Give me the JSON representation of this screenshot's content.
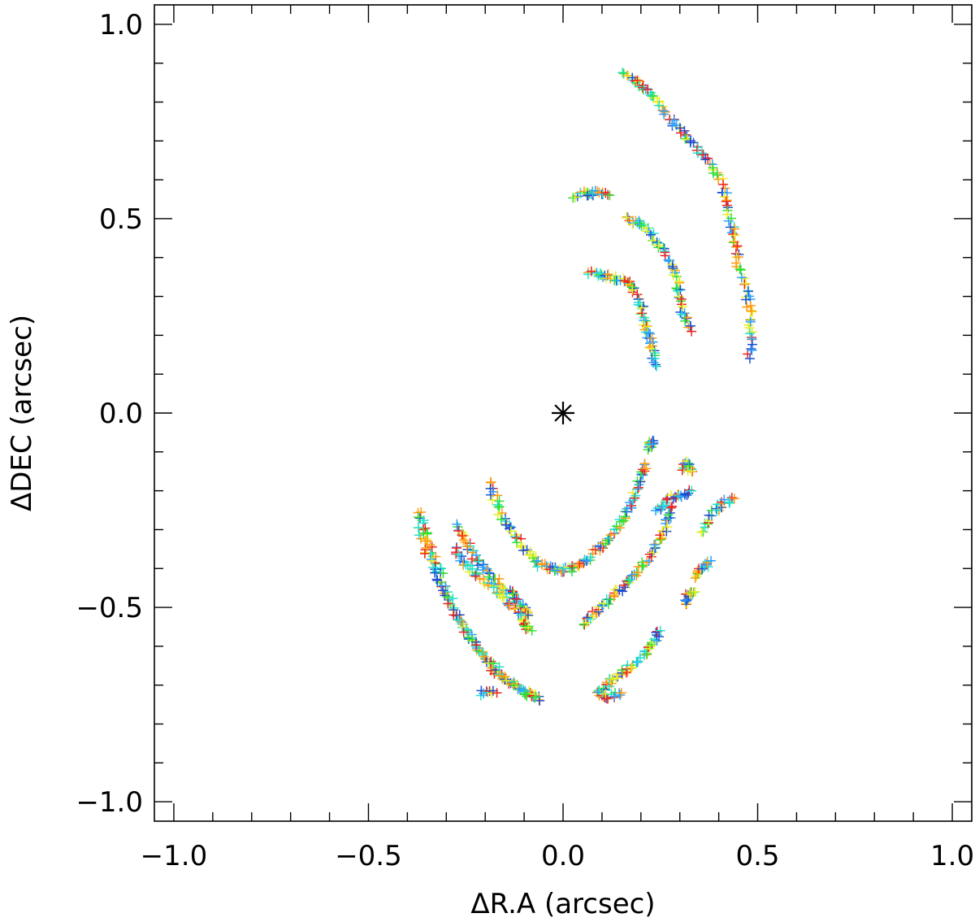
{
  "chart_data": {
    "type": "scatter",
    "title": "",
    "xlabel": "ΔR.A (arcsec)",
    "ylabel": "ΔDEC (arcsec)",
    "xlim": [
      -1.05,
      1.05
    ],
    "ylim": [
      -1.05,
      1.05
    ],
    "xticks": [
      "−1.0",
      "−0.5",
      "0.0",
      "0.5",
      "1.0"
    ],
    "yticks": [
      "−1.0",
      "−0.5",
      "0.0",
      "0.5",
      "1.0"
    ],
    "xtick_values": [
      -1.0,
      -0.5,
      0.0,
      0.5,
      1.0
    ],
    "ytick_values": [
      -1.0,
      -0.5,
      0.0,
      0.5,
      1.0
    ],
    "grid": false,
    "center_marker": {
      "x": 0.0,
      "y": 0.0,
      "symbol": "asterisk"
    },
    "marker": "plus",
    "palette": [
      "#1f4fd0",
      "#2aa0ff",
      "#20e0d0",
      "#30e030",
      "#e8ee20",
      "#ff9a10",
      "#f02020"
    ],
    "arcs": [
      {
        "points": [
          [
            0.16,
            0.87
          ],
          [
            0.19,
            0.85
          ],
          [
            0.22,
            0.83
          ],
          [
            0.25,
            0.79
          ],
          [
            0.28,
            0.75
          ],
          [
            0.31,
            0.72
          ],
          [
            0.34,
            0.68
          ],
          [
            0.37,
            0.65
          ],
          [
            0.4,
            0.61
          ],
          [
            0.42,
            0.56
          ],
          [
            0.43,
            0.5
          ],
          [
            0.44,
            0.44
          ],
          [
            0.45,
            0.38
          ],
          [
            0.47,
            0.32
          ],
          [
            0.48,
            0.26
          ],
          [
            0.48,
            0.2
          ],
          [
            0.48,
            0.14
          ]
        ]
      },
      {
        "points": [
          [
            0.03,
            0.56
          ],
          [
            0.06,
            0.565
          ],
          [
            0.09,
            0.565
          ],
          [
            0.12,
            0.56
          ]
        ]
      },
      {
        "points": [
          [
            0.16,
            0.5
          ],
          [
            0.19,
            0.49
          ],
          [
            0.22,
            0.47
          ],
          [
            0.25,
            0.43
          ],
          [
            0.27,
            0.39
          ],
          [
            0.29,
            0.35
          ],
          [
            0.3,
            0.3
          ],
          [
            0.31,
            0.25
          ],
          [
            0.33,
            0.21
          ]
        ]
      },
      {
        "points": [
          [
            0.07,
            0.36
          ],
          [
            0.1,
            0.355
          ],
          [
            0.13,
            0.35
          ],
          [
            0.16,
            0.34
          ],
          [
            0.18,
            0.32
          ],
          [
            0.2,
            0.28
          ],
          [
            0.21,
            0.24
          ],
          [
            0.22,
            0.2
          ],
          [
            0.23,
            0.16
          ],
          [
            0.24,
            0.12
          ]
        ]
      },
      {
        "points": [
          [
            -0.19,
            -0.18
          ],
          [
            -0.17,
            -0.23
          ],
          [
            -0.15,
            -0.28
          ],
          [
            -0.12,
            -0.32
          ],
          [
            -0.09,
            -0.36
          ],
          [
            -0.06,
            -0.39
          ],
          [
            -0.03,
            -0.4
          ],
          [
            0.0,
            -0.405
          ],
          [
            0.03,
            -0.4
          ],
          [
            0.06,
            -0.38
          ],
          [
            0.09,
            -0.35
          ],
          [
            0.12,
            -0.32
          ],
          [
            0.15,
            -0.28
          ],
          [
            0.17,
            -0.24
          ],
          [
            0.19,
            -0.2
          ],
          [
            0.2,
            -0.16
          ],
          [
            0.21,
            -0.13
          ]
        ]
      },
      {
        "points": [
          [
            0.22,
            -0.09
          ],
          [
            0.225,
            -0.075
          ],
          [
            0.23,
            -0.08
          ]
        ]
      },
      {
        "points": [
          [
            0.31,
            -0.14
          ],
          [
            0.32,
            -0.13
          ],
          [
            0.33,
            -0.15
          ]
        ]
      },
      {
        "points": [
          [
            -0.27,
            -0.29
          ],
          [
            -0.25,
            -0.33
          ],
          [
            -0.23,
            -0.37
          ],
          [
            -0.2,
            -0.4
          ],
          [
            -0.17,
            -0.43
          ],
          [
            -0.14,
            -0.46
          ],
          [
            -0.12,
            -0.48
          ],
          [
            -0.1,
            -0.5
          ],
          [
            -0.09,
            -0.52
          ]
        ]
      },
      {
        "points": [
          [
            -0.28,
            -0.35
          ],
          [
            -0.25,
            -0.39
          ],
          [
            -0.22,
            -0.42
          ],
          [
            -0.18,
            -0.45
          ],
          [
            -0.15,
            -0.48
          ],
          [
            -0.12,
            -0.51
          ],
          [
            -0.1,
            -0.54
          ],
          [
            -0.08,
            -0.56
          ]
        ]
      },
      {
        "points": [
          [
            0.05,
            -0.54
          ],
          [
            0.08,
            -0.51
          ],
          [
            0.11,
            -0.49
          ],
          [
            0.14,
            -0.46
          ],
          [
            0.17,
            -0.43
          ],
          [
            0.2,
            -0.4
          ],
          [
            0.23,
            -0.36
          ],
          [
            0.25,
            -0.32
          ],
          [
            0.27,
            -0.28
          ],
          [
            0.28,
            -0.24
          ]
        ]
      },
      {
        "points": [
          [
            0.24,
            -0.25
          ],
          [
            0.27,
            -0.22
          ],
          [
            0.3,
            -0.21
          ],
          [
            0.33,
            -0.2
          ]
        ]
      },
      {
        "points": [
          [
            0.36,
            -0.3
          ],
          [
            0.38,
            -0.26
          ],
          [
            0.41,
            -0.23
          ],
          [
            0.44,
            -0.22
          ]
        ]
      },
      {
        "points": [
          [
            0.34,
            -0.42
          ],
          [
            0.36,
            -0.4
          ],
          [
            0.38,
            -0.38
          ]
        ]
      },
      {
        "points": [
          [
            0.31,
            -0.49
          ],
          [
            0.32,
            -0.47
          ],
          [
            0.34,
            -0.46
          ]
        ]
      },
      {
        "points": [
          [
            -0.37,
            -0.25
          ],
          [
            -0.35,
            -0.31
          ],
          [
            -0.33,
            -0.37
          ],
          [
            -0.31,
            -0.43
          ],
          [
            -0.28,
            -0.5
          ],
          [
            -0.25,
            -0.56
          ],
          [
            -0.21,
            -0.62
          ],
          [
            -0.17,
            -0.67
          ],
          [
            -0.13,
            -0.7
          ],
          [
            -0.09,
            -0.72
          ],
          [
            -0.06,
            -0.74
          ]
        ]
      },
      {
        "points": [
          [
            -0.37,
            -0.3
          ],
          [
            -0.35,
            -0.36
          ],
          [
            -0.32,
            -0.43
          ],
          [
            -0.29,
            -0.49
          ],
          [
            -0.26,
            -0.55
          ],
          [
            -0.22,
            -0.6
          ],
          [
            -0.18,
            -0.65
          ],
          [
            -0.14,
            -0.69
          ],
          [
            -0.1,
            -0.72
          ],
          [
            -0.07,
            -0.73
          ]
        ]
      },
      {
        "points": [
          [
            -0.21,
            -0.72
          ],
          [
            -0.17,
            -0.72
          ]
        ]
      },
      {
        "points": [
          [
            0.09,
            -0.72
          ],
          [
            0.12,
            -0.69
          ],
          [
            0.15,
            -0.67
          ],
          [
            0.18,
            -0.65
          ],
          [
            0.21,
            -0.62
          ],
          [
            0.23,
            -0.59
          ],
          [
            0.25,
            -0.56
          ]
        ]
      },
      {
        "points": [
          [
            0.09,
            -0.72
          ],
          [
            0.12,
            -0.73
          ],
          [
            0.15,
            -0.72
          ]
        ]
      }
    ]
  }
}
